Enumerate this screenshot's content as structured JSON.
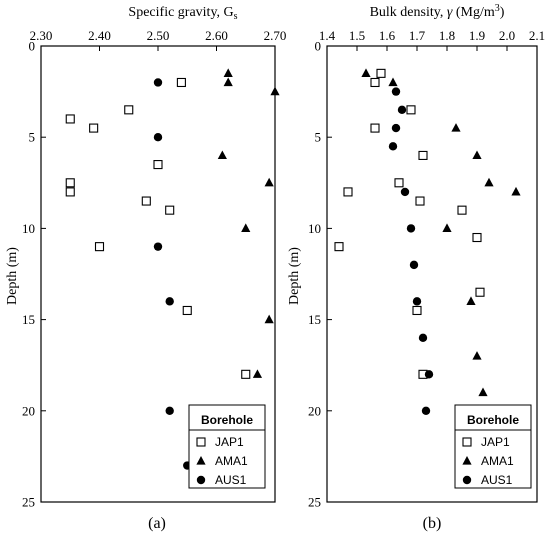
{
  "panels": [
    {
      "caption": "(a)",
      "xaxis_label_main": "Specific gravity, G",
      "xaxis_label_sub": "s",
      "yaxis_label": "Depth  (m)",
      "x_ticks": [
        "2.30",
        "2.40",
        "2.50",
        "2.60",
        "2.70"
      ],
      "y_ticks": [
        "0",
        "5",
        "10",
        "15",
        "20",
        "25"
      ]
    },
    {
      "caption": "(b)",
      "xaxis_label_main": "Bulk density, ",
      "xaxis_label_symbol": "γ",
      "xaxis_label_unit_pre": " (Mg/m",
      "xaxis_label_sup": "3",
      "xaxis_label_unit_post": ")",
      "yaxis_label": "Depth  (m)",
      "x_ticks": [
        "1.4",
        "1.5",
        "1.6",
        "1.7",
        "1.8",
        "1.9",
        "2.0",
        "2.1"
      ],
      "y_ticks": [
        "0",
        "5",
        "10",
        "15",
        "20",
        "25"
      ]
    }
  ],
  "legend": {
    "title": "Borehole",
    "entries": [
      "JAP1",
      "AMA1",
      "AUS1"
    ]
  },
  "chart_data": [
    {
      "type": "scatter",
      "xlabel": "Specific gravity, Gs",
      "ylabel": "Depth (m)",
      "xlim": [
        2.3,
        2.7
      ],
      "ylim": [
        25,
        0
      ],
      "y_inverted": true,
      "x_axis_position": "top",
      "grid": false,
      "legend_position": "bottom-right",
      "series": [
        {
          "name": "JAP1",
          "marker": "square-open",
          "points": [
            [
              2.54,
              2.0
            ],
            [
              2.45,
              3.5
            ],
            [
              2.35,
              4.0
            ],
            [
              2.39,
              4.5
            ],
            [
              2.5,
              6.5
            ],
            [
              2.35,
              7.5
            ],
            [
              2.35,
              8.0
            ],
            [
              2.48,
              8.5
            ],
            [
              2.52,
              9.0
            ],
            [
              2.4,
              11.0
            ],
            [
              2.55,
              14.5
            ],
            [
              2.65,
              18.0
            ]
          ]
        },
        {
          "name": "AMA1",
          "marker": "triangle-filled",
          "points": [
            [
              2.62,
              1.5
            ],
            [
              2.62,
              2.0
            ],
            [
              2.7,
              2.5
            ],
            [
              2.61,
              6.0
            ],
            [
              2.69,
              7.5
            ],
            [
              2.65,
              10.0
            ],
            [
              2.69,
              15.0
            ],
            [
              2.67,
              18.0
            ]
          ]
        },
        {
          "name": "AUS1",
          "marker": "circle-filled",
          "points": [
            [
              2.5,
              2.0
            ],
            [
              2.5,
              5.0
            ],
            [
              2.5,
              11.0
            ],
            [
              2.52,
              14.0
            ],
            [
              2.52,
              20.0
            ],
            [
              2.55,
              23.0
            ]
          ]
        }
      ]
    },
    {
      "type": "scatter",
      "xlabel": "Bulk density, γ (Mg/m3)",
      "ylabel": "Depth (m)",
      "xlim": [
        1.4,
        2.1
      ],
      "ylim": [
        25,
        0
      ],
      "y_inverted": true,
      "x_axis_position": "top",
      "grid": false,
      "legend_position": "bottom-right",
      "series": [
        {
          "name": "JAP1",
          "marker": "square-open",
          "points": [
            [
              1.58,
              1.5
            ],
            [
              1.56,
              2.0
            ],
            [
              1.68,
              3.5
            ],
            [
              1.56,
              4.5
            ],
            [
              1.72,
              6.0
            ],
            [
              1.64,
              7.5
            ],
            [
              1.47,
              8.0
            ],
            [
              1.71,
              8.5
            ],
            [
              1.85,
              9.0
            ],
            [
              1.9,
              10.5
            ],
            [
              1.44,
              11.0
            ],
            [
              1.91,
              13.5
            ],
            [
              1.7,
              14.5
            ],
            [
              1.72,
              18.0
            ]
          ]
        },
        {
          "name": "AMA1",
          "marker": "triangle-filled",
          "points": [
            [
              1.53,
              1.5
            ],
            [
              1.62,
              2.0
            ],
            [
              1.83,
              4.5
            ],
            [
              1.9,
              6.0
            ],
            [
              1.94,
              7.5
            ],
            [
              2.03,
              8.0
            ],
            [
              1.8,
              10.0
            ],
            [
              1.88,
              14.0
            ],
            [
              1.9,
              17.0
            ],
            [
              1.92,
              19.0
            ]
          ]
        },
        {
          "name": "AUS1",
          "marker": "circle-filled",
          "points": [
            [
              1.63,
              2.5
            ],
            [
              1.65,
              3.5
            ],
            [
              1.63,
              4.5
            ],
            [
              1.62,
              5.5
            ],
            [
              1.66,
              8.0
            ],
            [
              1.68,
              10.0
            ],
            [
              1.69,
              12.0
            ],
            [
              1.7,
              14.0
            ],
            [
              1.72,
              16.0
            ],
            [
              1.74,
              18.0
            ],
            [
              1.73,
              20.0
            ]
          ]
        }
      ]
    }
  ]
}
